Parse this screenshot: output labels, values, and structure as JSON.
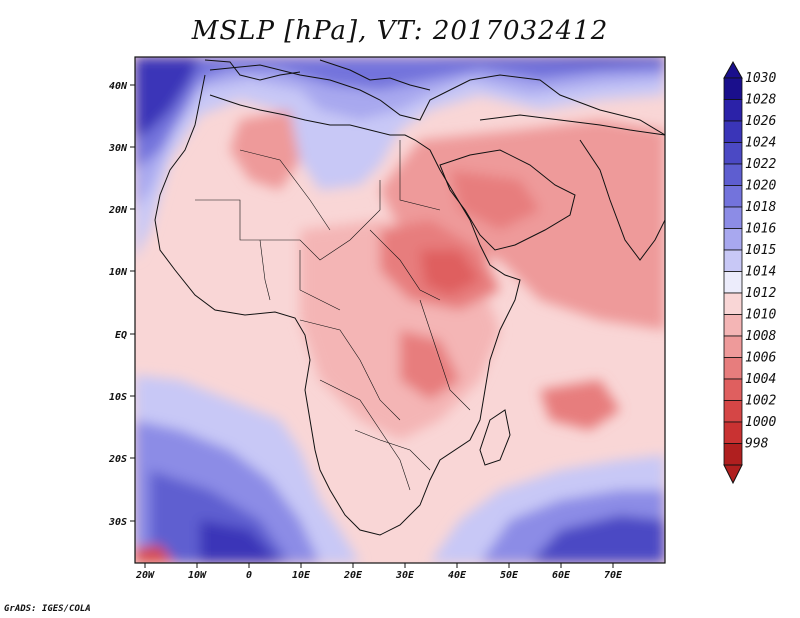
{
  "title": "MSLP [hPa], VT: 2017032412",
  "credit": "GrADS: IGES/COLA",
  "axes": {
    "x_ticks": [
      "20W",
      "10W",
      "0",
      "10E",
      "20E",
      "30E",
      "40E",
      "50E",
      "60E",
      "70E"
    ],
    "y_ticks": [
      "40N",
      "30N",
      "20N",
      "10N",
      "EQ",
      "10S",
      "20S",
      "30S"
    ]
  },
  "colorbar": {
    "levels": [
      "1030",
      "1028",
      "1026",
      "1024",
      "1022",
      "1020",
      "1018",
      "1016",
      "1015",
      "1014",
      "1012",
      "1010",
      "1008",
      "1006",
      "1004",
      "1002",
      "1000",
      "998"
    ],
    "colors": [
      "#1a0f8c",
      "#2b22a8",
      "#3a35b8",
      "#4b49c4",
      "#5e5ed0",
      "#7373dc",
      "#8c8ce6",
      "#a8a8ef",
      "#c8c8f6",
      "#ececfb",
      "#f9d6d6",
      "#f4b5b5",
      "#ee9a9a",
      "#e77d7d",
      "#df5f5f",
      "#d54646",
      "#c93232",
      "#b01f1f"
    ]
  }
}
